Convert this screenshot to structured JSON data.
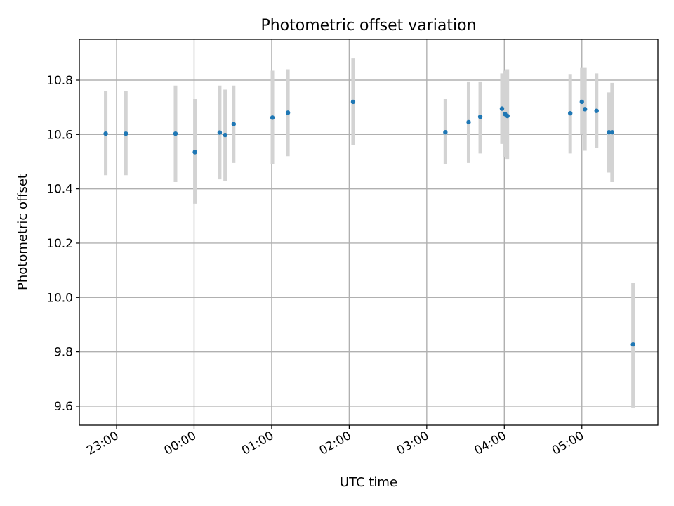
{
  "chart_data": {
    "type": "scatter",
    "title": "Photometric offset variation",
    "xlabel": "UTC time",
    "ylabel": "Photometric offset",
    "x_unit": "hours (UTC, relative to 00:00)",
    "xlim": [
      -1.48,
      5.98
    ],
    "ylim": [
      9.53,
      10.95
    ],
    "grid": true,
    "x_ticks": [
      {
        "value": -1,
        "label": "23:00"
      },
      {
        "value": 0,
        "label": "00:00"
      },
      {
        "value": 1,
        "label": "01:00"
      },
      {
        "value": 2,
        "label": "02:00"
      },
      {
        "value": 3,
        "label": "03:00"
      },
      {
        "value": 4,
        "label": "04:00"
      },
      {
        "value": 5,
        "label": "05:00"
      }
    ],
    "y_ticks": [
      {
        "value": 9.6,
        "label": "9.6"
      },
      {
        "value": 9.8,
        "label": "9.8"
      },
      {
        "value": 10.0,
        "label": "10.0"
      },
      {
        "value": 10.2,
        "label": "10.2"
      },
      {
        "value": 10.4,
        "label": "10.4"
      },
      {
        "value": 10.6,
        "label": "10.6"
      },
      {
        "value": 10.8,
        "label": "10.8"
      }
    ],
    "point_color": "#1f77b4",
    "errorbar_color": "#d3d3d3",
    "points": [
      {
        "x": -1.14,
        "y": 10.603,
        "lo": 10.45,
        "hi": 10.76
      },
      {
        "x": -0.88,
        "y": 10.603,
        "lo": 10.45,
        "hi": 10.76
      },
      {
        "x": -0.24,
        "y": 10.603,
        "lo": 10.425,
        "hi": 10.78
      },
      {
        "x": 0.01,
        "y": 10.535,
        "lo": 10.345,
        "hi": 10.73
      },
      {
        "x": 0.33,
        "y": 10.607,
        "lo": 10.435,
        "hi": 10.78
      },
      {
        "x": 0.4,
        "y": 10.598,
        "lo": 10.43,
        "hi": 10.765
      },
      {
        "x": 0.51,
        "y": 10.638,
        "lo": 10.495,
        "hi": 10.78
      },
      {
        "x": 1.01,
        "y": 10.662,
        "lo": 10.49,
        "hi": 10.835
      },
      {
        "x": 1.21,
        "y": 10.68,
        "lo": 10.52,
        "hi": 10.84
      },
      {
        "x": 2.05,
        "y": 10.72,
        "lo": 10.56,
        "hi": 10.88
      },
      {
        "x": 3.24,
        "y": 10.608,
        "lo": 10.49,
        "hi": 10.73
      },
      {
        "x": 3.54,
        "y": 10.645,
        "lo": 10.495,
        "hi": 10.795
      },
      {
        "x": 3.69,
        "y": 10.665,
        "lo": 10.53,
        "hi": 10.795
      },
      {
        "x": 3.97,
        "y": 10.695,
        "lo": 10.565,
        "hi": 10.825
      },
      {
        "x": 4.01,
        "y": 10.675,
        "lo": 10.515,
        "hi": 10.835
      },
      {
        "x": 4.04,
        "y": 10.668,
        "lo": 10.51,
        "hi": 10.84
      },
      {
        "x": 4.85,
        "y": 10.678,
        "lo": 10.53,
        "hi": 10.82
      },
      {
        "x": 5.0,
        "y": 10.72,
        "lo": 10.6,
        "hi": 10.845
      },
      {
        "x": 5.04,
        "y": 10.693,
        "lo": 10.54,
        "hi": 10.845
      },
      {
        "x": 5.19,
        "y": 10.687,
        "lo": 10.55,
        "hi": 10.825
      },
      {
        "x": 5.35,
        "y": 10.608,
        "lo": 10.46,
        "hi": 10.755
      },
      {
        "x": 5.39,
        "y": 10.608,
        "lo": 10.425,
        "hi": 10.79
      },
      {
        "x": 5.66,
        "y": 9.827,
        "lo": 9.595,
        "hi": 10.055
      }
    ]
  }
}
